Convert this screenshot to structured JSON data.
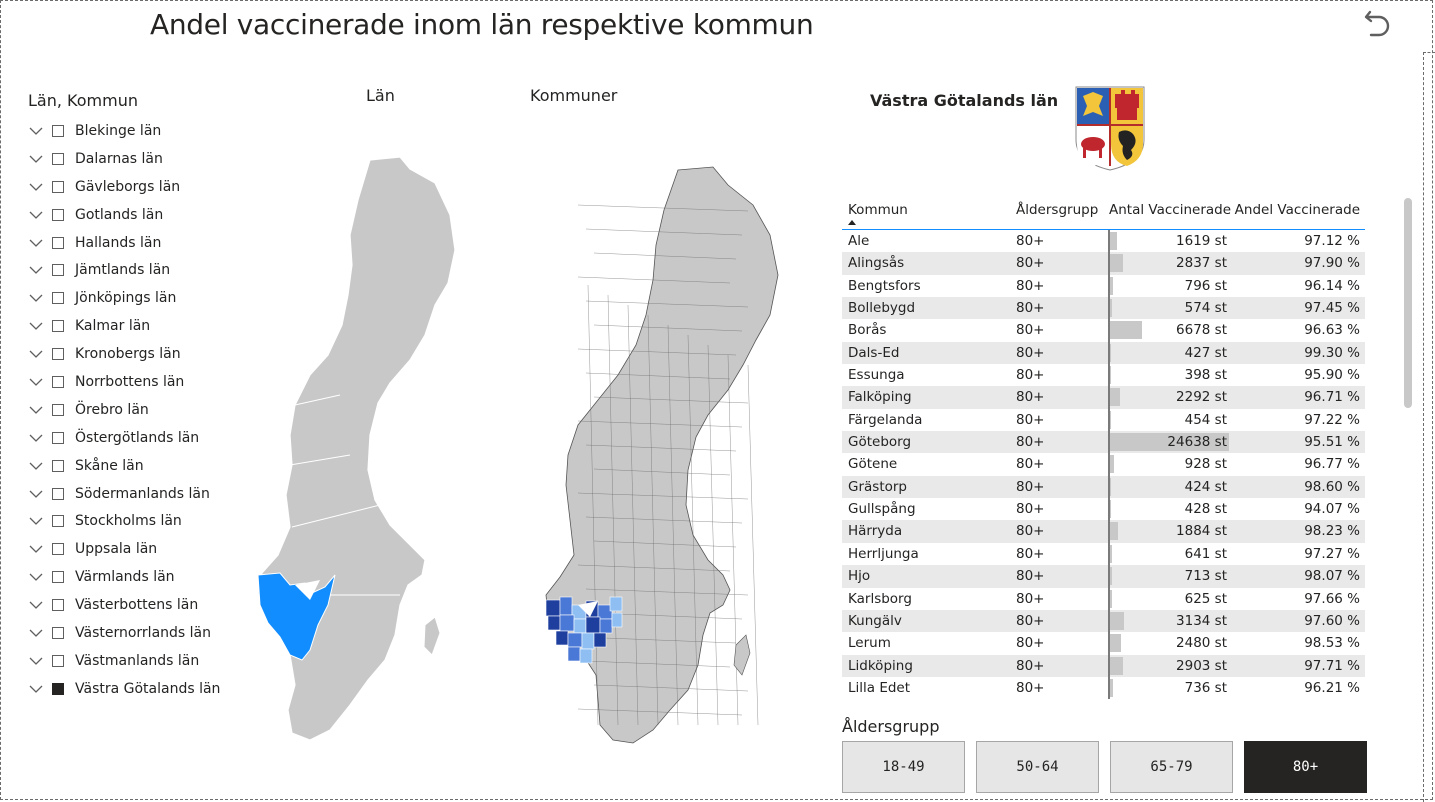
{
  "page": {
    "title": "Andel vaccinerade inom län respektive kommun",
    "back_icon": "undo-arrow-icon"
  },
  "slicer": {
    "title": "Län, Kommun",
    "items": [
      {
        "label": "Blekinge län",
        "checked": false
      },
      {
        "label": "Dalarnas län",
        "checked": false
      },
      {
        "label": "Gävleborgs län",
        "checked": false
      },
      {
        "label": "Gotlands län",
        "checked": false
      },
      {
        "label": "Hallands län",
        "checked": false
      },
      {
        "label": "Jämtlands län",
        "checked": false
      },
      {
        "label": "Jönköpings län",
        "checked": false
      },
      {
        "label": "Kalmar län",
        "checked": false
      },
      {
        "label": "Kronobergs län",
        "checked": false
      },
      {
        "label": "Norrbottens län",
        "checked": false
      },
      {
        "label": "Örebro län",
        "checked": false
      },
      {
        "label": "Östergötlands län",
        "checked": false
      },
      {
        "label": "Skåne län",
        "checked": false
      },
      {
        "label": "Södermanlands län",
        "checked": false
      },
      {
        "label": "Stockholms län",
        "checked": false
      },
      {
        "label": "Uppsala län",
        "checked": false
      },
      {
        "label": "Värmlands län",
        "checked": false
      },
      {
        "label": "Västerbottens län",
        "checked": false
      },
      {
        "label": "Västernorrlands län",
        "checked": false
      },
      {
        "label": "Västmanlands län",
        "checked": false
      },
      {
        "label": "Västra Götalands län",
        "checked": true
      }
    ]
  },
  "maps": {
    "lan_label": "Län",
    "kommuner_label": "Kommuner",
    "base_color": "#c8c8c8",
    "highlight_color": "#118dff",
    "kommun_dark": "#1f3f9f",
    "kommun_mid": "#4a78d6",
    "kommun_light": "#8fbff2"
  },
  "detail": {
    "region_title": "Västra Götalands län",
    "coat_icon": "coat-of-arms-icon"
  },
  "table": {
    "headers": {
      "kommun": "Kommun",
      "alder": "Åldersgrupp",
      "antal": "Antal Vaccinerade",
      "andel": "Andel Vaccinerade"
    },
    "sort": "ascending",
    "rows": [
      {
        "kommun": "Ale",
        "alder": "80+",
        "antal": "1619 st",
        "antal_value": 1619,
        "andel": "97.12 %"
      },
      {
        "kommun": "Alingsås",
        "alder": "80+",
        "antal": "2837 st",
        "antal_value": 2837,
        "andel": "97.90 %"
      },
      {
        "kommun": "Bengtsfors",
        "alder": "80+",
        "antal": "796 st",
        "antal_value": 796,
        "andel": "96.14 %"
      },
      {
        "kommun": "Bollebygd",
        "alder": "80+",
        "antal": "574 st",
        "antal_value": 574,
        "andel": "97.45 %"
      },
      {
        "kommun": "Borås",
        "alder": "80+",
        "antal": "6678 st",
        "antal_value": 6678,
        "andel": "96.63 %"
      },
      {
        "kommun": "Dals-Ed",
        "alder": "80+",
        "antal": "427 st",
        "antal_value": 427,
        "andel": "99.30 %"
      },
      {
        "kommun": "Essunga",
        "alder": "80+",
        "antal": "398 st",
        "antal_value": 398,
        "andel": "95.90 %"
      },
      {
        "kommun": "Falköping",
        "alder": "80+",
        "antal": "2292 st",
        "antal_value": 2292,
        "andel": "96.71 %"
      },
      {
        "kommun": "Färgelanda",
        "alder": "80+",
        "antal": "454 st",
        "antal_value": 454,
        "andel": "97.22 %"
      },
      {
        "kommun": "Göteborg",
        "alder": "80+",
        "antal": "24638 st",
        "antal_value": 24638,
        "andel": "95.51 %"
      },
      {
        "kommun": "Götene",
        "alder": "80+",
        "antal": "928 st",
        "antal_value": 928,
        "andel": "96.77 %"
      },
      {
        "kommun": "Grästorp",
        "alder": "80+",
        "antal": "424 st",
        "antal_value": 424,
        "andel": "98.60 %"
      },
      {
        "kommun": "Gullspång",
        "alder": "80+",
        "antal": "428 st",
        "antal_value": 428,
        "andel": "94.07 %"
      },
      {
        "kommun": "Härryda",
        "alder": "80+",
        "antal": "1884 st",
        "antal_value": 1884,
        "andel": "98.23 %"
      },
      {
        "kommun": "Herrljunga",
        "alder": "80+",
        "antal": "641 st",
        "antal_value": 641,
        "andel": "97.27 %"
      },
      {
        "kommun": "Hjo",
        "alder": "80+",
        "antal": "713 st",
        "antal_value": 713,
        "andel": "98.07 %"
      },
      {
        "kommun": "Karlsborg",
        "alder": "80+",
        "antal": "625 st",
        "antal_value": 625,
        "andel": "97.66 %"
      },
      {
        "kommun": "Kungälv",
        "alder": "80+",
        "antal": "3134 st",
        "antal_value": 3134,
        "andel": "97.60 %"
      },
      {
        "kommun": "Lerum",
        "alder": "80+",
        "antal": "2480 st",
        "antal_value": 2480,
        "andel": "98.53 %"
      },
      {
        "kommun": "Lidköping",
        "alder": "80+",
        "antal": "2903 st",
        "antal_value": 2903,
        "andel": "97.71 %"
      },
      {
        "kommun": "Lilla Edet",
        "alder": "80+",
        "antal": "736 st",
        "antal_value": 736,
        "andel": "96.21 %"
      }
    ]
  },
  "age_buttons": {
    "title": "Åldersgrupp",
    "items": [
      {
        "label": "18-49",
        "active": false
      },
      {
        "label": "50-64",
        "active": false
      },
      {
        "label": "65-79",
        "active": false
      },
      {
        "label": "80+",
        "active": true
      }
    ]
  }
}
